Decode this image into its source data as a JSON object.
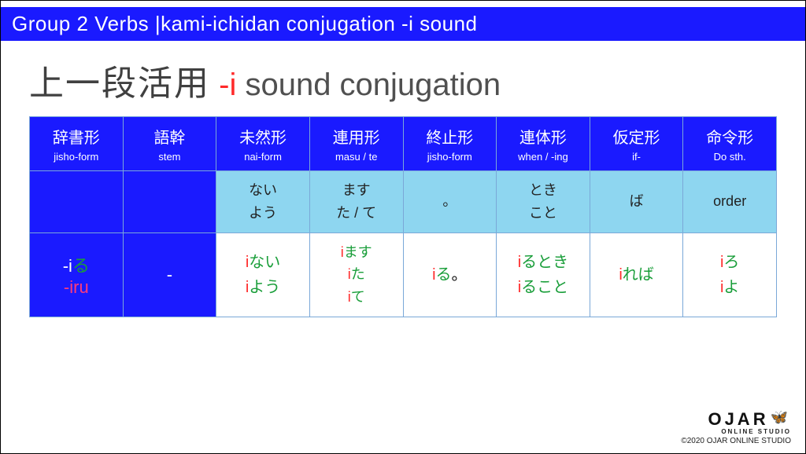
{
  "banner": "Group 2 Verbs |kami-ichidan conjugation -i sound",
  "title": {
    "jp": "上一段活用",
    "dash_i": "-i",
    "rest": " sound conjugation"
  },
  "columns": [
    {
      "jp": "辞書形",
      "en": "jisho-form"
    },
    {
      "jp": "語幹",
      "en": "stem"
    },
    {
      "jp": "未然形",
      "en": "nai-form"
    },
    {
      "jp": "連用形",
      "en": "masu / te"
    },
    {
      "jp": "終止形",
      "en": "jisho-form"
    },
    {
      "jp": "連体形",
      "en": "when / -ing"
    },
    {
      "jp": "仮定形",
      "en": "if-"
    },
    {
      "jp": "命令形",
      "en": "Do sth."
    }
  ],
  "subrow": {
    "c2": {
      "l1": "ない",
      "l2": "よう"
    },
    "c3": {
      "l1": "ます",
      "l2": "た / て"
    },
    "c4": "。",
    "c5": {
      "l1": "とき",
      "l2": "こと"
    },
    "c6": "ば",
    "c7": "order"
  },
  "mainrow": {
    "dict": {
      "l1_pre": "-i",
      "l1_suf": "る",
      "l2": "-iru"
    },
    "stem": "-",
    "nai": {
      "l1_i": "i",
      "l1_s": "ない",
      "l2_i": "i",
      "l2_s": "よう"
    },
    "masu": {
      "l1_i": "i",
      "l1_s": "ます",
      "l2_i": "i",
      "l2_s": "た",
      "l3_i": "i",
      "l3_s": "て"
    },
    "jisho": {
      "i": "i",
      "s1": "る",
      "s2": "。"
    },
    "when": {
      "l1_i": "i",
      "l1_s1": "る",
      "l1_s2": "とき",
      "l2_i": "i",
      "l2_s1": "る",
      "l2_s2": "こと"
    },
    "if": {
      "i": "i",
      "s1": "れ",
      "s2": "ば"
    },
    "ord": {
      "l1_i": "i",
      "l1_s": "ろ",
      "l2_i": "i",
      "l2_s": "よ"
    }
  },
  "brand": {
    "name": "OJAR",
    "sub": "ONLINE STUDIO",
    "butterfly": "🦋"
  },
  "copyright": "©2020 OJAR ONLINE STUDIO"
}
